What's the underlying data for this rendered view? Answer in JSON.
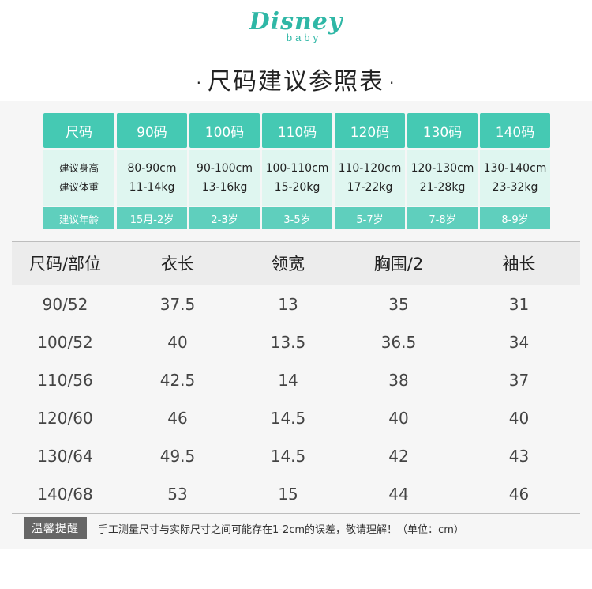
{
  "logo": {
    "main": "Disney",
    "sub": "baby"
  },
  "title": {
    "dot": "·",
    "text": "尺码建议参照表"
  },
  "recommendation": {
    "header_label": "尺码",
    "sizes": [
      "90码",
      "100码",
      "110码",
      "120码",
      "130码",
      "140码"
    ],
    "height_label": "建议身高",
    "weight_label": "建议体重",
    "heights": [
      "80-90cm",
      "90-100cm",
      "100-110cm",
      "110-120cm",
      "120-130cm",
      "130-140cm"
    ],
    "weights": [
      "11-14kg",
      "13-16kg",
      "15-20kg",
      "17-22kg",
      "21-28kg",
      "23-32kg"
    ],
    "age_label": "建议年龄",
    "ages": [
      "15月-2岁",
      "2-3岁",
      "3-5岁",
      "5-7岁",
      "7-8岁",
      "8-9岁"
    ]
  },
  "measurements": {
    "columns": [
      "尺码/部位",
      "衣长",
      "领宽",
      "胸围/2",
      "袖长"
    ],
    "rows": [
      [
        "90/52",
        "37.5",
        "13",
        "35",
        "31"
      ],
      [
        "100/52",
        "40",
        "13.5",
        "36.5",
        "34"
      ],
      [
        "110/56",
        "42.5",
        "14",
        "38",
        "37"
      ],
      [
        "120/60",
        "46",
        "14.5",
        "40",
        "40"
      ],
      [
        "130/64",
        "49.5",
        "14.5",
        "42",
        "43"
      ],
      [
        "140/68",
        "53",
        "15",
        "44",
        "46"
      ]
    ]
  },
  "note": {
    "badge": "温馨提醒",
    "text": "手工测量尺寸与实际尺寸之间可能存在1-2cm的误差，敬请理解！（单位：cm）"
  },
  "colors": {
    "accent": "#45c9b3",
    "light_accent": "#dff6f0",
    "brand": "#2fb7a6"
  }
}
